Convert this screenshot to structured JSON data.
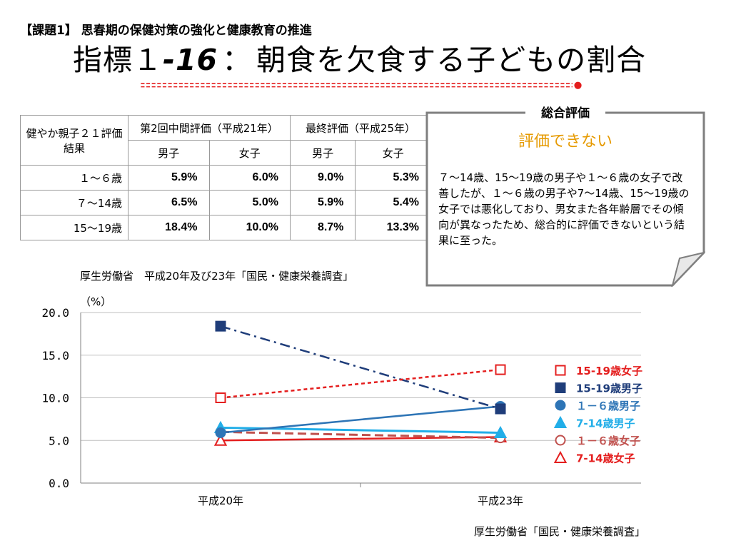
{
  "header": {
    "subtitle": "【課題1】 思春期の保健対策の強化と健康教育の推進",
    "title_prefix": "指標１",
    "title_number": "-16",
    "title_colon": "：",
    "title_main": "朝食を欠食する子どもの割合"
  },
  "colors": {
    "divider": "#e41e1e",
    "accent": "#e69a00"
  },
  "table": {
    "header_label": "健やか親子２１評価結果",
    "mid_eval": "第2回中間評価（平成21年）",
    "final_eval": "最終評価（平成25年）",
    "male": "男子",
    "female": "女子",
    "rows": [
      {
        "age": "１～６歳",
        "values": [
          "5.9%",
          "6.0%",
          "9.0%",
          "5.3%"
        ]
      },
      {
        "age": "７～14歳",
        "values": [
          "6.5%",
          "5.0%",
          "5.9%",
          "5.4%"
        ]
      },
      {
        "age": "15～19歳",
        "values": [
          "18.4%",
          "10.0%",
          "8.7%",
          "13.3%"
        ]
      }
    ],
    "source": "厚生労働省　平成20年及び23年「国民・健康栄養調査」"
  },
  "summary": {
    "heading": "総合評価",
    "verdict": "評価できない",
    "body": "７～14歳、15～19歳の男子や１～６歳の女子で改善したが、１～６歳の男子や7～14歳、15～19歳の女子では悪化しており、男女また各年齢層でその傾向が異なったため、総合的に評価できないという結果に至った。"
  },
  "chart_data": {
    "type": "line",
    "ylabel": "（%）",
    "ylim": [
      0,
      20
    ],
    "yticks": [
      "0.0",
      "5.0",
      "10.0",
      "15.0",
      "20.0"
    ],
    "categories": [
      "平成20年",
      "平成23年"
    ],
    "series": [
      {
        "name": "15-19歳女子",
        "values": [
          10.0,
          13.3
        ],
        "color": "#e41e1e",
        "marker": "open-square",
        "dash": "5,4",
        "width": 2.5
      },
      {
        "name": "15-19歳男子",
        "values": [
          18.4,
          8.7
        ],
        "color": "#1f3d7a",
        "marker": "filled-square",
        "dash": "14,6,3,6",
        "width": 2.5
      },
      {
        "name": "１－６歳男子",
        "values": [
          5.9,
          9.0
        ],
        "color": "#2e75b6",
        "marker": "filled-circle",
        "dash": "",
        "width": 2.5
      },
      {
        "name": "7-14歳男子",
        "values": [
          6.5,
          5.9
        ],
        "color": "#22aee8",
        "marker": "filled-triangle",
        "dash": "",
        "width": 3
      },
      {
        "name": "１－６歳女子",
        "values": [
          6.0,
          5.3
        ],
        "color": "#c0504d",
        "marker": "open-circle",
        "dash": "12,6",
        "width": 3
      },
      {
        "name": "7-14歳女子",
        "values": [
          5.0,
          5.4
        ],
        "color": "#e41e1e",
        "marker": "open-triangle",
        "dash": "",
        "width": 2.5
      }
    ],
    "source": "厚生労働省「国民・健康栄養調査」"
  }
}
